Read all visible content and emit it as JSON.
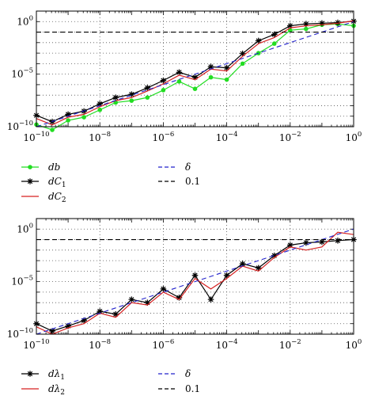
{
  "chart_data": [
    {
      "type": "line",
      "xscale": "log",
      "yscale": "log",
      "xlim": [
        1e-10,
        1
      ],
      "ylim": [
        1e-10,
        10
      ],
      "grid": true,
      "legend_position": "below",
      "x_ticks": [
        {
          "base": "10",
          "exp": "−10"
        },
        {
          "base": "10",
          "exp": "−8"
        },
        {
          "base": "10",
          "exp": "−6"
        },
        {
          "base": "10",
          "exp": "−4"
        },
        {
          "base": "10",
          "exp": "−2"
        },
        {
          "base": "10",
          "exp": "0"
        }
      ],
      "y_ticks": [
        {
          "base": "10",
          "exp": "0"
        },
        {
          "base": "10",
          "exp": "−5"
        },
        {
          "base": "10",
          "exp": "−10"
        }
      ],
      "x": [
        1e-10,
        3.16e-10,
        1e-09,
        3.16e-09,
        1e-08,
        3.16e-08,
        1e-07,
        3.16e-07,
        1e-06,
        3.16e-06,
        1e-05,
        3.16e-05,
        0.0001,
        0.000316,
        0.001,
        0.00316,
        0.01,
        0.0316,
        0.1,
        0.316,
        1
      ],
      "series": [
        {
          "name": "db",
          "label_base": "db",
          "label_sub": "",
          "color": "#22dd22",
          "marker": "dot",
          "dash": "solid",
          "values": [
            1.6e-10,
            5e-11,
            4e-10,
            8e-10,
            4e-09,
            2e-08,
            3e-08,
            6e-08,
            3e-07,
            2e-06,
            4e-07,
            5e-06,
            3e-06,
            0.0001,
            0.001,
            0.008,
            0.15,
            0.2,
            0.5,
            0.6,
            0.4
          ]
        },
        {
          "name": "dC1",
          "label_base": "dC",
          "label_sub": "1",
          "color": "#000000",
          "marker": "star",
          "dash": "solid",
          "values": [
            1.2e-09,
            3e-10,
            1.5e-09,
            3e-09,
            1.5e-08,
            6e-08,
            1.2e-07,
            5e-07,
            2.5e-06,
            1.5e-05,
            5e-06,
            5e-05,
            4e-05,
            0.0009,
            0.015,
            0.06,
            0.4,
            0.6,
            0.7,
            0.8,
            1.1
          ]
        },
        {
          "name": "dC2",
          "label_base": "dC",
          "label_sub": "2",
          "color": "#d62222",
          "marker": "none",
          "dash": "solid",
          "values": [
            6e-10,
            1.5e-10,
            8e-10,
            1.5e-09,
            8e-09,
            3e-08,
            6e-08,
            2.5e-07,
            1.2e-06,
            8e-06,
            3e-06,
            3e-05,
            2e-05,
            0.0005,
            0.008,
            0.03,
            0.25,
            0.4,
            0.5,
            0.7,
            1.2
          ]
        },
        {
          "name": "δ",
          "label_base": "δ",
          "label_sub": "",
          "color": "#2222cc",
          "marker": "none",
          "dash": "dashed",
          "values": [
            1e-10,
            3.16e-10,
            1e-09,
            3.16e-09,
            1e-08,
            3.16e-08,
            1e-07,
            3.16e-07,
            1e-06,
            3.16e-06,
            1e-05,
            3.16e-05,
            0.0001,
            0.000316,
            0.001,
            0.00316,
            0.01,
            0.0316,
            0.1,
            0.316,
            1
          ]
        },
        {
          "name": "0.1",
          "label_base": "0.1",
          "label_sub": "",
          "color": "#000000",
          "marker": "none",
          "dash": "dashed",
          "values": [
            0.1,
            0.1,
            0.1,
            0.1,
            0.1,
            0.1,
            0.1,
            0.1,
            0.1,
            0.1,
            0.1,
            0.1,
            0.1,
            0.1,
            0.1,
            0.1,
            0.1,
            0.1,
            0.1,
            0.1,
            0.1
          ]
        }
      ]
    },
    {
      "type": "line",
      "xscale": "log",
      "yscale": "log",
      "xlim": [
        1e-10,
        1
      ],
      "ylim": [
        1e-10,
        10
      ],
      "grid": true,
      "legend_position": "below",
      "x_ticks": [
        {
          "base": "10",
          "exp": "−10"
        },
        {
          "base": "10",
          "exp": "−8"
        },
        {
          "base": "10",
          "exp": "−6"
        },
        {
          "base": "10",
          "exp": "−4"
        },
        {
          "base": "10",
          "exp": "−2"
        },
        {
          "base": "10",
          "exp": "0"
        }
      ],
      "y_ticks": [
        {
          "base": "10",
          "exp": "0"
        },
        {
          "base": "10",
          "exp": "−5"
        },
        {
          "base": "10",
          "exp": "−10"
        }
      ],
      "x": [
        1e-10,
        3.16e-10,
        1e-09,
        3.16e-09,
        1e-08,
        3.16e-08,
        1e-07,
        3.16e-07,
        1e-06,
        3.16e-06,
        1e-05,
        3.16e-05,
        0.0001,
        0.000316,
        0.001,
        0.00316,
        0.01,
        0.0316,
        0.1,
        0.316,
        1
      ],
      "series": [
        {
          "name": "dλ1",
          "label_base": "dλ",
          "label_sub": "1",
          "color": "#000000",
          "marker": "star",
          "dash": "solid",
          "values": [
            1e-09,
            2e-10,
            6e-10,
            2e-09,
            1.5e-08,
            8e-09,
            2e-07,
            1e-07,
            2e-06,
            3e-07,
            4e-05,
            2e-07,
            4e-05,
            0.0005,
            0.0002,
            0.003,
            0.03,
            0.05,
            0.06,
            0.08,
            0.1
          ]
        },
        {
          "name": "dλ2",
          "label_base": "dλ",
          "label_sub": "2",
          "color": "#d62222",
          "marker": "none",
          "dash": "solid",
          "values": [
            5e-10,
            1e-10,
            4e-10,
            1e-09,
            1e-08,
            4e-09,
            1e-07,
            6e-08,
            1e-06,
            2e-07,
            2e-05,
            2e-06,
            2e-05,
            0.0003,
            0.0001,
            0.002,
            0.02,
            0.01,
            0.02,
            0.5,
            0.3
          ]
        },
        {
          "name": "δ",
          "label_base": "δ",
          "label_sub": "",
          "color": "#2222cc",
          "marker": "none",
          "dash": "dashed",
          "values": [
            1e-10,
            3.16e-10,
            1e-09,
            3.16e-09,
            1e-08,
            3.16e-08,
            1e-07,
            3.16e-07,
            1e-06,
            3.16e-06,
            1e-05,
            3.16e-05,
            0.0001,
            0.000316,
            0.001,
            0.00316,
            0.01,
            0.0316,
            0.1,
            0.316,
            1
          ]
        },
        {
          "name": "0.1",
          "label_base": "0.1",
          "label_sub": "",
          "color": "#000000",
          "marker": "none",
          "dash": "dashed",
          "values": [
            0.1,
            0.1,
            0.1,
            0.1,
            0.1,
            0.1,
            0.1,
            0.1,
            0.1,
            0.1,
            0.1,
            0.1,
            0.1,
            0.1,
            0.1,
            0.1,
            0.1,
            0.1,
            0.1,
            0.1,
            0.1
          ]
        }
      ]
    }
  ]
}
